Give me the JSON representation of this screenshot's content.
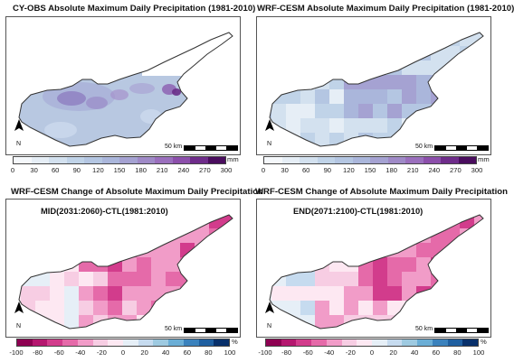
{
  "panels": {
    "tl": {
      "title": "CY-OBS Absolute Maximum Daily Precipitation (1981-2010)"
    },
    "tr": {
      "title": "WRF-CESM Absolute Maximum Daily Precipitation (1981-2010)"
    },
    "bl": {
      "title": "WRF-CESM Change of Absolute Maximum Daily Precipitation",
      "period": "MID(2031:2060)-CTL(1981:2010)"
    },
    "br": {
      "title": "WRF-CESM Change of Absolute Maximum Daily Precipitation",
      "period": "END(2071:2100)-CTL(1981:2010)"
    }
  },
  "scale_label": "50 km",
  "north_label": "N",
  "precip_colorbar": {
    "ticks": [
      "0",
      "30",
      "60",
      "90",
      "120",
      "150",
      "180",
      "210",
      "240",
      "270",
      "300"
    ],
    "unit": "mm",
    "colors": [
      "#f5f8fb",
      "#e6eef6",
      "#d3e1ef",
      "#c0d3e8",
      "#b4c6e2",
      "#aab6db",
      "#a5a2d2",
      "#9f8ac7",
      "#9a6fbd",
      "#8c4fab",
      "#6e2c8a",
      "#4a0d5e"
    ]
  },
  "change_colorbar": {
    "ticks": [
      "-100",
      "-80",
      "-60",
      "-40",
      "-20",
      "0",
      "20",
      "40",
      "60",
      "80",
      "100"
    ],
    "unit": "%",
    "colors": [
      "#8e0152",
      "#b5176f",
      "#d23c8c",
      "#e56aa9",
      "#f19cc8",
      "#f7cde3",
      "#fde8f2",
      "#e6eff7",
      "#c6dbef",
      "#9ecae1",
      "#6baed6",
      "#3b82bd",
      "#1f5fa0",
      "#08306b"
    ]
  },
  "colors": {
    "frame": "#555555",
    "land_outline": "#333333"
  }
}
